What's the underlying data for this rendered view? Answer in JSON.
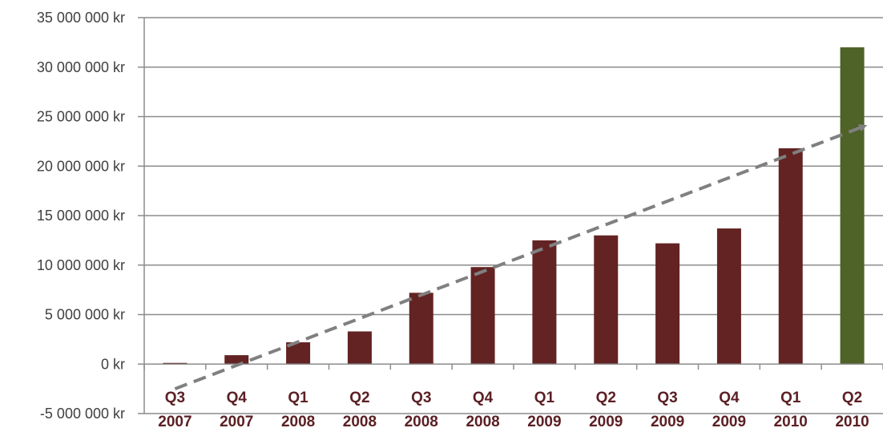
{
  "chart_data": {
    "type": "bar",
    "categories": [
      [
        "Q3",
        "2007"
      ],
      [
        "Q4",
        "2007"
      ],
      [
        "Q1",
        "2008"
      ],
      [
        "Q2",
        "2008"
      ],
      [
        "Q3",
        "2008"
      ],
      [
        "Q4",
        "2008"
      ],
      [
        "Q1",
        "2009"
      ],
      [
        "Q2",
        "2009"
      ],
      [
        "Q3",
        "2009"
      ],
      [
        "Q4",
        "2009"
      ],
      [
        "Q1",
        "2010"
      ],
      [
        "Q2",
        "2010"
      ]
    ],
    "values": [
      100000,
      900000,
      2200000,
      3300000,
      7200000,
      9800000,
      12500000,
      13000000,
      12200000,
      13700000,
      21800000,
      32000000
    ],
    "bar_colors": [
      "#632323",
      "#632323",
      "#632323",
      "#632323",
      "#632323",
      "#632323",
      "#632323",
      "#632323",
      "#632323",
      "#632323",
      "#632323",
      "#4f6228"
    ],
    "ylim": [
      -5000000,
      35000000
    ],
    "yticks": [
      -5000000,
      0,
      5000000,
      10000000,
      15000000,
      20000000,
      25000000,
      30000000,
      35000000
    ],
    "ytick_labels": [
      "-5 000 000 kr",
      "0 kr",
      "5 000 000 kr",
      "10 000 000 kr",
      "15 000 000 kr",
      "20 000 000 kr",
      "25 000 000 kr",
      "30 000 000 kr",
      "35 000 000 kr"
    ],
    "grid": true,
    "legend": "none",
    "title": "",
    "xlabel": "",
    "ylabel": "",
    "trendline": {
      "style": "dashed",
      "color": "#808080",
      "start_value": -2500000,
      "end_value": 24000000,
      "arrow": true
    }
  }
}
